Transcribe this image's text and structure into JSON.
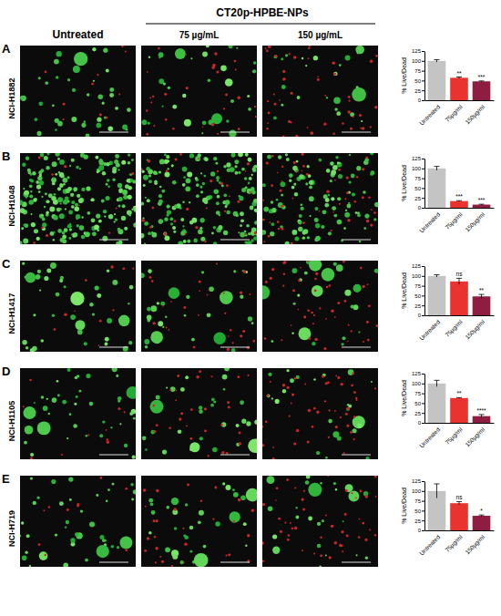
{
  "figure": {
    "header": "CT20p-HPBE-NPs",
    "columns": [
      "Untreated",
      "75 µg/mL",
      "150 µg/mL"
    ],
    "panels": [
      {
        "letter": "A",
        "cell_line": "NCI-H1882"
      },
      {
        "letter": "B",
        "cell_line": "NCI-H1048"
      },
      {
        "letter": "C",
        "cell_line": "NCI-H1417"
      },
      {
        "letter": "D",
        "cell_line": "NCI-H1105"
      },
      {
        "letter": "E",
        "cell_line": "NCI-H719"
      }
    ]
  },
  "chart_data": [
    {
      "type": "bar",
      "y_label": "% Live/Dead",
      "categories": [
        "Untreated",
        "75µg/ml",
        "150µg/ml"
      ],
      "values": [
        100,
        57,
        48
      ],
      "errors": [
        3,
        2,
        1
      ],
      "significance": [
        null,
        "**",
        "***"
      ],
      "colors": [
        "#c4c4c4",
        "#e8332f",
        "#8e1d41"
      ],
      "ylim": [
        0,
        125
      ],
      "yticks": [
        0,
        25,
        50,
        75,
        100,
        125
      ]
    },
    {
      "type": "bar",
      "y_label": "% Live/Dead",
      "categories": [
        "Untreated",
        "75µg/ml",
        "150µg/ml"
      ],
      "values": [
        100,
        17,
        8
      ],
      "errors": [
        5,
        1,
        1
      ],
      "significance": [
        null,
        "***",
        "***"
      ],
      "colors": [
        "#c4c4c4",
        "#e8332f",
        "#8e1d41"
      ],
      "ylim": [
        0,
        125
      ],
      "yticks": [
        0,
        25,
        50,
        75,
        100,
        125
      ]
    },
    {
      "type": "bar",
      "y_label": "% Live/Dead",
      "categories": [
        "Untreated",
        "75µg/ml",
        "150µg/ml"
      ],
      "values": [
        100,
        86,
        48
      ],
      "errors": [
        3,
        8,
        5
      ],
      "significance": [
        null,
        "ns",
        "**"
      ],
      "colors": [
        "#c4c4c4",
        "#e8332f",
        "#8e1d41"
      ],
      "ylim": [
        0,
        125
      ],
      "yticks": [
        0,
        25,
        50,
        75,
        100,
        125
      ]
    },
    {
      "type": "bar",
      "y_label": "% Live/Dead",
      "categories": [
        "Untreated",
        "75µg/ml",
        "150µg/ml"
      ],
      "values": [
        100,
        63,
        17
      ],
      "errors": [
        8,
        1,
        4
      ],
      "significance": [
        null,
        "**",
        "****"
      ],
      "colors": [
        "#c4c4c4",
        "#e8332f",
        "#8e1d41"
      ],
      "ylim": [
        0,
        125
      ],
      "yticks": [
        0,
        25,
        50,
        75,
        100,
        125
      ]
    },
    {
      "type": "bar",
      "y_label": "% Live/Dead",
      "categories": [
        "Untreated",
        "75µg/ml",
        "150µg/ml"
      ],
      "values": [
        100,
        69,
        37
      ],
      "errors": [
        18,
        4,
        2
      ],
      "significance": [
        null,
        "ns",
        "*"
      ],
      "colors": [
        "#c4c4c4",
        "#e8332f",
        "#8e1d41"
      ],
      "ylim": [
        0,
        125
      ],
      "yticks": [
        0,
        25,
        50,
        75,
        100,
        125
      ]
    }
  ]
}
